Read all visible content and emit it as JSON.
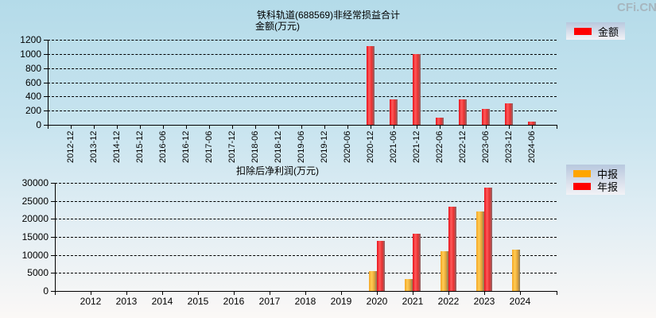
{
  "watermark": "CFi.CN",
  "chart_data": [
    {
      "type": "bar",
      "title": "铁科轨道(688569)非经常损益合计",
      "ylabel": "金额(万元)",
      "xlabel": "",
      "legend": [
        {
          "name": "金额",
          "color": "#ff0000"
        }
      ],
      "legend_position": "top-right",
      "grid": true,
      "ylim": [
        0,
        1200
      ],
      "yticks": [
        0,
        200,
        400,
        600,
        800,
        1000,
        1200
      ],
      "categories": [
        "2012-12",
        "2013-12",
        "2014-12",
        "2015-12",
        "2016-06",
        "2016-12",
        "2017-06",
        "2017-12",
        "2018-06",
        "2018-12",
        "2019-06",
        "2019-12",
        "2020-06",
        "2020-12",
        "2021-06",
        "2021-12",
        "2022-06",
        "2022-12",
        "2023-06",
        "2023-12",
        "2024-06"
      ],
      "series": [
        {
          "name": "金额",
          "values": [
            0,
            0,
            0,
            0,
            0,
            0,
            0,
            0,
            0,
            0,
            0,
            0,
            0,
            1105,
            363,
            1003,
            105,
            363,
            228,
            307,
            48
          ]
        }
      ]
    },
    {
      "type": "bar",
      "title": "扣除后净利润(万元)",
      "xlabel": "",
      "ylabel": "",
      "legend": [
        {
          "name": "中报",
          "color": "#ffa500"
        },
        {
          "name": "年报",
          "color": "#ff0000"
        }
      ],
      "legend_position": "top-right",
      "grid": true,
      "ylim": [
        0,
        30000
      ],
      "yticks": [
        0,
        5000,
        10000,
        15000,
        20000,
        25000,
        30000
      ],
      "categories": [
        "2012",
        "2013",
        "2014",
        "2015",
        "2016",
        "2017",
        "2018",
        "2019",
        "2020",
        "2021",
        "2022",
        "2023",
        "2024"
      ],
      "series": [
        {
          "name": "中报",
          "values": [
            null,
            null,
            null,
            null,
            null,
            null,
            null,
            null,
            5500,
            3300,
            11000,
            22100,
            11400
          ]
        },
        {
          "name": "年报",
          "values": [
            null,
            null,
            null,
            null,
            null,
            null,
            null,
            null,
            13900,
            15900,
            23400,
            28700,
            null
          ]
        }
      ]
    }
  ],
  "top": {
    "title": "铁科轨道(688569)非经常损益合计",
    "subtitle": "金额(万元)",
    "legend_label": "金额"
  },
  "bottom": {
    "title": "扣除后净利润(万元)",
    "legend_label_1": "中报",
    "legend_label_2": "年报"
  }
}
